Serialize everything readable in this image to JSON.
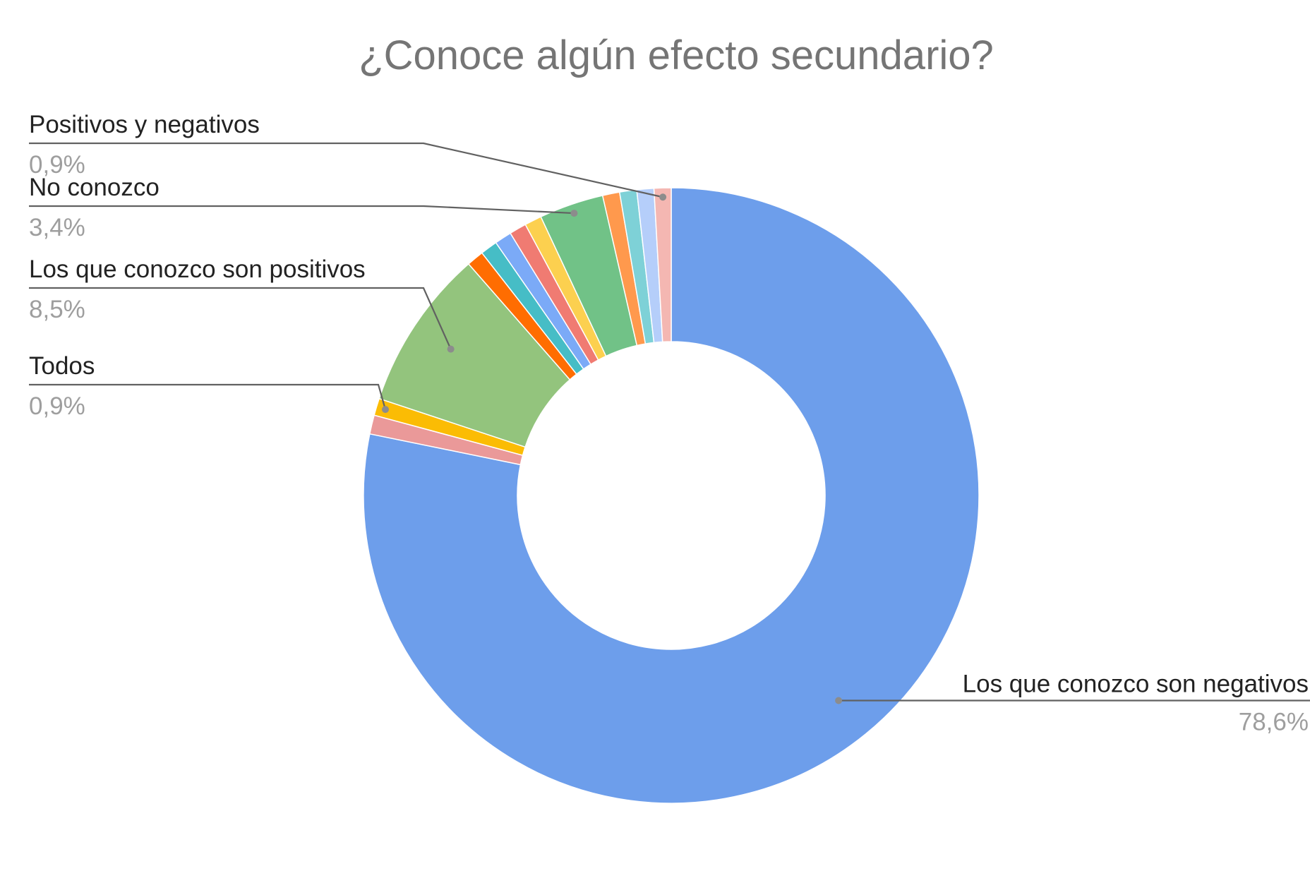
{
  "chart_data": {
    "type": "pie",
    "title": "¿Conoce algún efecto secundario?",
    "start_angle_deg": 0,
    "hole_ratio": 0.5,
    "slices": [
      {
        "label": "Los que conozco son negativos",
        "value": 78.6,
        "value_text": "78,6%",
        "color": "#6d9eeb"
      },
      {
        "label": "",
        "value": 1.0,
        "color": "#ea9999"
      },
      {
        "label": "Todos",
        "value": 0.9,
        "value_text": "0,9%",
        "color": "#fbbc04"
      },
      {
        "label": "Los que conozco son positivos",
        "value": 8.5,
        "value_text": "8,5%",
        "color": "#93c47d"
      },
      {
        "label": "",
        "value": 0.9,
        "color": "#ff6d01"
      },
      {
        "label": "",
        "value": 0.9,
        "color": "#46bdc6"
      },
      {
        "label": "",
        "value": 0.9,
        "color": "#7baaf7"
      },
      {
        "label": "",
        "value": 0.9,
        "color": "#f07b72"
      },
      {
        "label": "",
        "value": 0.9,
        "color": "#fcd04f"
      },
      {
        "label": "No conozco",
        "value": 3.4,
        "value_text": "3,4%",
        "color": "#71c287"
      },
      {
        "label": "",
        "value": 0.9,
        "color": "#ff994d"
      },
      {
        "label": "",
        "value": 0.9,
        "color": "#7ed1d7"
      },
      {
        "label": "",
        "value": 0.9,
        "color": "#b5cefa"
      },
      {
        "label": "Positivos y negativos",
        "value": 0.9,
        "value_text": "0,9%",
        "color": "#f4b7b2"
      }
    ]
  }
}
